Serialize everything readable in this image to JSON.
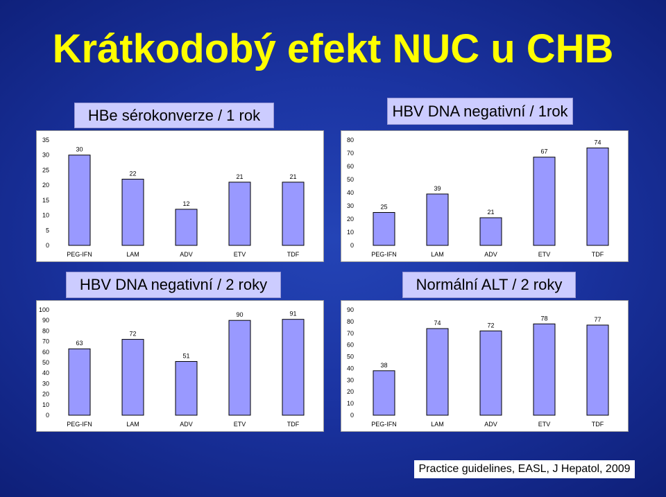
{
  "slide": {
    "title": "Krátkodobý efekt NUC u CHB",
    "citation": "Practice guidelines, EASL, J Hepatol, 2009",
    "colors": {
      "title": "#ffff00",
      "label_box": "#ccccff",
      "bar_fill": "#9999ff",
      "bar_stroke": "#000000"
    }
  },
  "chart_data": [
    {
      "type": "bar",
      "title": "HBe sérokonverze / 1 rok",
      "categories": [
        "PEG-IFN",
        "LAM",
        "ADV",
        "ETV",
        "TDF"
      ],
      "values": [
        30,
        22,
        12,
        21,
        21
      ],
      "ylim": [
        0,
        35
      ],
      "yticks": [
        0,
        5,
        10,
        15,
        20,
        25,
        30,
        35
      ],
      "xlabel": "",
      "ylabel": "",
      "grid": false,
      "legend": "none",
      "data_labels": true
    },
    {
      "type": "bar",
      "title": "HBV DNA negativní / 1rok",
      "categories": [
        "PEG-IFN",
        "LAM",
        "ADV",
        "ETV",
        "TDF"
      ],
      "values": [
        25,
        39,
        21,
        67,
        74
      ],
      "ylim": [
        0,
        80
      ],
      "yticks": [
        0,
        10,
        20,
        30,
        40,
        50,
        60,
        70,
        80
      ],
      "xlabel": "",
      "ylabel": "",
      "grid": false,
      "legend": "none",
      "data_labels": true
    },
    {
      "type": "bar",
      "title": "HBV DNA negativní / 2 roky",
      "categories": [
        "PEG-IFN",
        "LAM",
        "ADV",
        "ETV",
        "TDF"
      ],
      "values": [
        63,
        72,
        51,
        90,
        91
      ],
      "ylim": [
        0,
        100
      ],
      "yticks": [
        0,
        10,
        20,
        30,
        40,
        50,
        60,
        70,
        80,
        90,
        100
      ],
      "xlabel": "",
      "ylabel": "",
      "grid": false,
      "legend": "none",
      "data_labels": true
    },
    {
      "type": "bar",
      "title": "Normální ALT / 2 roky",
      "categories": [
        "PEG-IFN",
        "LAM",
        "ADV",
        "ETV",
        "TDF"
      ],
      "values": [
        38,
        74,
        72,
        78,
        77
      ],
      "ylim": [
        0,
        90
      ],
      "yticks": [
        0,
        10,
        20,
        30,
        40,
        50,
        60,
        70,
        80,
        90
      ],
      "xlabel": "",
      "ylabel": "",
      "grid": false,
      "legend": "none",
      "data_labels": true
    }
  ]
}
